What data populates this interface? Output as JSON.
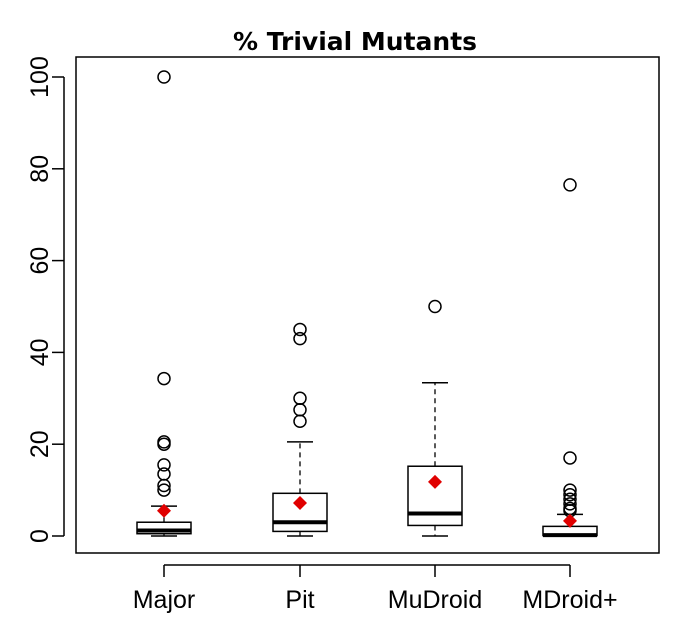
{
  "chart_data": {
    "type": "box",
    "title": "% Trivial Mutants",
    "xlabel": "",
    "ylabel": "",
    "ylim": [
      -4,
      104
    ],
    "yticks": [
      0,
      20,
      40,
      60,
      80,
      100
    ],
    "categories": [
      "Major",
      "Pit",
      "MuDroid",
      "MDroid+"
    ],
    "boxes": [
      {
        "category": "Major",
        "whisker_low": 0,
        "q1": 0.5,
        "median": 1.2,
        "q3": 3.0,
        "whisker_high": 6.5,
        "mean": 5.5,
        "outliers": [
          100,
          34.3,
          20.5,
          20.0,
          15.5,
          13.5,
          11.0,
          10.0
        ]
      },
      {
        "category": "Pit",
        "whisker_low": 0,
        "q1": 1.0,
        "median": 3.0,
        "q3": 9.3,
        "whisker_high": 20.5,
        "mean": 7.2,
        "outliers": [
          45.0,
          43.0,
          30.0,
          27.5,
          25.0
        ]
      },
      {
        "category": "MuDroid",
        "whisker_low": 0,
        "q1": 2.3,
        "median": 4.9,
        "q3": 15.2,
        "whisker_high": 33.4,
        "mean": 11.8,
        "outliers": [
          50.0
        ]
      },
      {
        "category": "MDroid+",
        "whisker_low": 0,
        "q1": 0.1,
        "median": 0.2,
        "q3": 2.1,
        "whisker_high": 4.7,
        "mean": 3.3,
        "outliers": [
          76.5,
          17.0,
          10.0,
          9.0,
          8.0,
          7.0,
          6.0,
          5.5
        ]
      }
    ],
    "colors": {
      "mean_marker": "#e00000",
      "box": "#000000",
      "outlier": "#000000"
    },
    "grid": false,
    "legend": "none"
  }
}
